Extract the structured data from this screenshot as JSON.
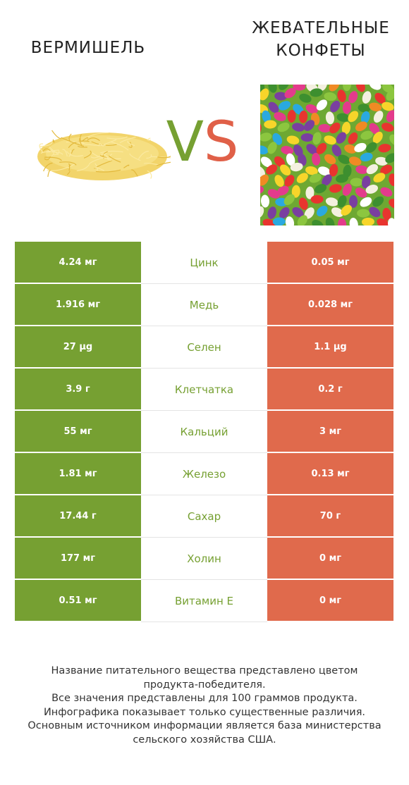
{
  "header": {
    "left_title": "ВЕРМИШЕЛЬ",
    "right_title_line1": "ЖЕВАТЕЛЬНЫЕ",
    "right_title_line2": "КОНФЕТЫ",
    "vs_v": "V",
    "vs_s": "S"
  },
  "colors": {
    "winner_left": "#76a032",
    "winner_right": "#e06a4c"
  },
  "rows": [
    {
      "left": "4.24 мг",
      "nutrient": "Цинк",
      "right": "0.05 мг"
    },
    {
      "left": "1.916 мг",
      "nutrient": "Медь",
      "right": "0.028 мг"
    },
    {
      "left": "27 µg",
      "nutrient": "Селен",
      "right": "1.1 µg"
    },
    {
      "left": "3.9 г",
      "nutrient": "Клетчатка",
      "right": "0.2 г"
    },
    {
      "left": "55 мг",
      "nutrient": "Кальций",
      "right": "3 мг"
    },
    {
      "left": "1.81 мг",
      "nutrient": "Железо",
      "right": "0.13 мг"
    },
    {
      "left": "17.44 г",
      "nutrient": "Сахар",
      "right": "70 г"
    },
    {
      "left": "177 мг",
      "nutrient": "Холин",
      "right": "0 мг"
    },
    {
      "left": "0.51 мг",
      "nutrient": "Витамин E",
      "right": "0 мг"
    }
  ],
  "footer": {
    "line1": "Название питательного вещества представлено цветом",
    "line2": "продукта-победителя.",
    "line3": "Все значения представлены для 100 граммов продукта.",
    "line4": "Инфографика показывает только существенные различия.",
    "line5": "Основным источником информации является база министерства",
    "line6": "сельского хозяйства США."
  }
}
